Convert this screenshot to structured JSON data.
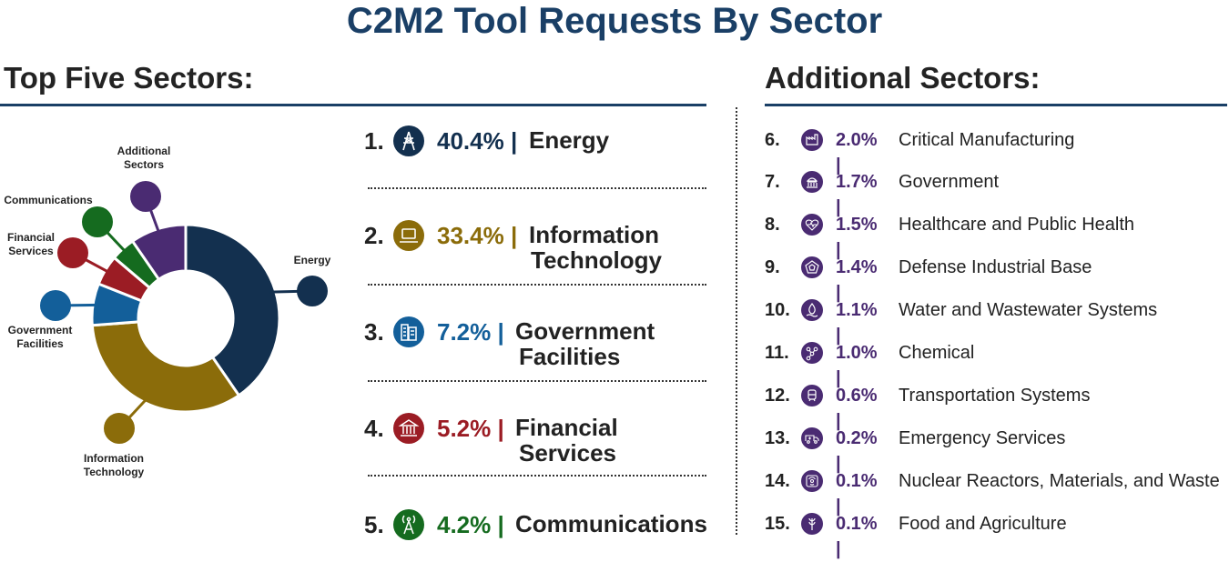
{
  "title": "C2M2 Tool Requests By Sector",
  "left_heading": "Top Five Sectors:",
  "right_heading": "Additional Sectors:",
  "colors": {
    "title": "#1a3f66",
    "energy": "#13304f",
    "it": "#8b6c0a",
    "government": "#135f9a",
    "financial": "#9b1c24",
    "communications": "#156b1f",
    "additional": "#4a2b72"
  },
  "top_sectors": [
    {
      "rank": "1.",
      "pct": "40.4% |",
      "name": "Energy",
      "icon": "transmission-tower-icon",
      "color": "#13304f"
    },
    {
      "rank": "2.",
      "pct": "33.4% |",
      "name": "Information\nTechnology",
      "icon": "laptop-icon",
      "color": "#8b6c0a"
    },
    {
      "rank": "3.",
      "pct": "7.2% |",
      "name": "Government\nFacilities",
      "icon": "building-icon",
      "color": "#135f9a"
    },
    {
      "rank": "4.",
      "pct": "5.2% |",
      "name": "Financial\nServices",
      "icon": "bank-icon",
      "color": "#9b1c24"
    },
    {
      "rank": "5.",
      "pct": "4.2% |",
      "name": "Communications",
      "icon": "antenna-icon",
      "color": "#156b1f"
    }
  ],
  "additional_sectors": [
    {
      "rank": "6.",
      "pct": "2.0% |",
      "name": "Critical Manufacturing",
      "icon": "factory-icon"
    },
    {
      "rank": "7.",
      "pct": "1.7% |",
      "name": "Government",
      "icon": "capitol-icon"
    },
    {
      "rank": "8.",
      "pct": "1.5% |",
      "name": "Healthcare and Public Health",
      "icon": "heart-pulse-icon"
    },
    {
      "rank": "9.",
      "pct": "1.4% |",
      "name": "Defense Industrial Base",
      "icon": "pentagon-icon"
    },
    {
      "rank": "10.",
      "pct": "1.1% |",
      "name": "Water and Wastewater Systems",
      "icon": "water-drop-icon"
    },
    {
      "rank": "11.",
      "pct": "1.0% |",
      "name": "Chemical",
      "icon": "molecule-icon"
    },
    {
      "rank": "12.",
      "pct": "0.6% |",
      "name": "Transportation Systems",
      "icon": "train-icon"
    },
    {
      "rank": "13.",
      "pct": "0.2% |",
      "name": "Emergency Services",
      "icon": "ambulance-icon"
    },
    {
      "rank": "14.",
      "pct": "0.1% |",
      "name": "Nuclear Reactors, Materials, and Waste",
      "icon": "radiation-icon"
    },
    {
      "rank": "15.",
      "pct": "0.1% |",
      "name": "Food and Agriculture",
      "icon": "wheat-icon"
    }
  ],
  "chart_data": {
    "type": "pie",
    "donut": true,
    "title": "",
    "categories": [
      "Energy",
      "Information Technology",
      "Government Facilities",
      "Financial Services",
      "Communications",
      "Additional Sectors"
    ],
    "labels": [
      "Energy",
      "Information\nTechnology",
      "Government\nFacilities",
      "Financial\nServices",
      "Communications",
      "Additional\nSectors"
    ],
    "values": [
      40.4,
      33.4,
      7.2,
      5.2,
      4.2,
      9.6
    ],
    "colors": [
      "#13304f",
      "#8b6c0a",
      "#135f9a",
      "#9b1c24",
      "#156b1f",
      "#4a2b72"
    ],
    "icons": [
      "transmission-tower-icon",
      "laptop-icon",
      "building-icon",
      "bank-icon",
      "antenna-icon",
      ""
    ]
  }
}
